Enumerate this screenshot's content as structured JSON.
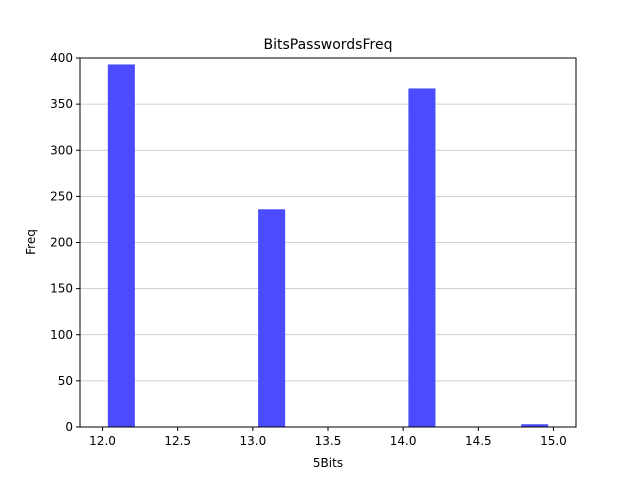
{
  "chart_data": {
    "type": "bar",
    "title": "BitsPasswordsFreq",
    "xlabel": "5Bits",
    "ylabel": "Freq",
    "xlim": [
      11.85,
      15.15
    ],
    "ylim": [
      0,
      400
    ],
    "xticks": [
      "12.0",
      "12.5",
      "13.0",
      "13.5",
      "14.0",
      "14.5",
      "15.0"
    ],
    "xtick_values": [
      12.0,
      12.5,
      13.0,
      13.5,
      14.0,
      14.5,
      15.0
    ],
    "yticks": [
      "0",
      "50",
      "100",
      "150",
      "200",
      "250",
      "300",
      "350",
      "400"
    ],
    "ytick_values": [
      0,
      50,
      100,
      150,
      200,
      250,
      300,
      350,
      400
    ],
    "grid": "y",
    "bar_color": "#4b4bff",
    "bins": [
      {
        "start": 12.0,
        "end": 12.25,
        "value": 393
      },
      {
        "start": 12.25,
        "end": 12.5,
        "value": 0
      },
      {
        "start": 12.5,
        "end": 12.75,
        "value": 0
      },
      {
        "start": 12.75,
        "end": 13.0,
        "value": 0
      },
      {
        "start": 13.0,
        "end": 13.25,
        "value": 236
      },
      {
        "start": 13.25,
        "end": 13.5,
        "value": 0
      },
      {
        "start": 13.5,
        "end": 13.75,
        "value": 0
      },
      {
        "start": 13.75,
        "end": 14.0,
        "value": 0
      },
      {
        "start": 14.0,
        "end": 14.25,
        "value": 367
      },
      {
        "start": 14.25,
        "end": 14.5,
        "value": 0
      },
      {
        "start": 14.5,
        "end": 14.75,
        "value": 0
      },
      {
        "start": 14.75,
        "end": 15.0,
        "value": 3
      }
    ]
  }
}
